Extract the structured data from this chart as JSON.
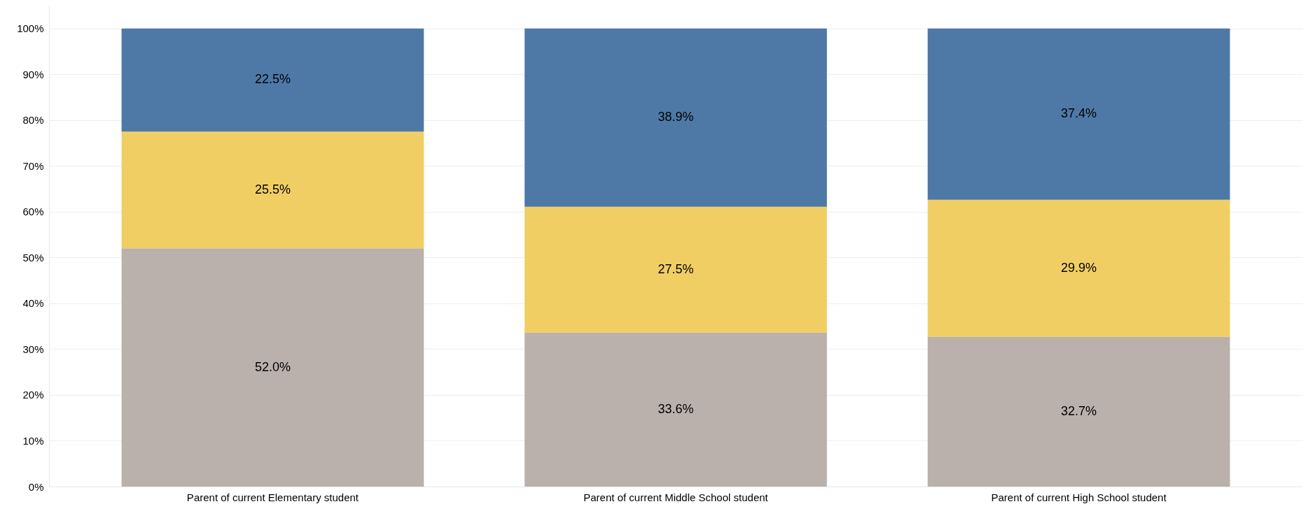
{
  "chart_data": {
    "type": "bar",
    "stacked": true,
    "categories": [
      "Parent of current Elementary student",
      "Parent of current Middle School student",
      "Parent of current High School student"
    ],
    "series": [
      {
        "color": "#bab0ac",
        "values": [
          52.0,
          33.6,
          32.7
        ],
        "value_labels": [
          "52.0%",
          "33.6%",
          "32.7%"
        ]
      },
      {
        "color": "#f1ce63",
        "values": [
          25.5,
          27.5,
          29.9
        ],
        "value_labels": [
          "25.5%",
          "27.5%",
          "29.9%"
        ]
      },
      {
        "color": "#4e79a7",
        "values": [
          22.5,
          38.9,
          37.4
        ],
        "value_labels": [
          "22.5%",
          "38.9%",
          "37.4%"
        ]
      }
    ],
    "ylim": [
      0,
      105
    ],
    "yticks": [
      {
        "value": 0,
        "label": "0%"
      },
      {
        "value": 10,
        "label": "10%"
      },
      {
        "value": 20,
        "label": "20%"
      },
      {
        "value": 30,
        "label": "30%"
      },
      {
        "value": 40,
        "label": "40%"
      },
      {
        "value": 50,
        "label": "50%"
      },
      {
        "value": 60,
        "label": "60%"
      },
      {
        "value": 70,
        "label": "70%"
      },
      {
        "value": 80,
        "label": "80%"
      },
      {
        "value": 90,
        "label": "90%"
      },
      {
        "value": 100,
        "label": "100%"
      }
    ],
    "grid": "y"
  }
}
